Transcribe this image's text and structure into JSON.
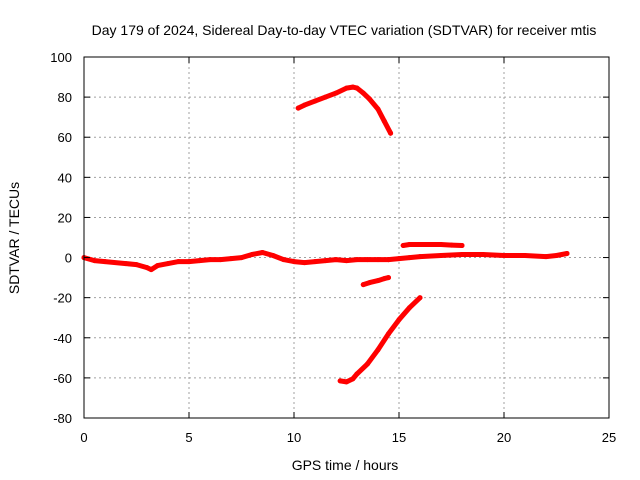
{
  "chart_data": {
    "type": "scatter",
    "title": "Day 179 of 2024, Sidereal Day-to-day VTEC variation (SDTVAR) for receiver mtis",
    "xlabel": "GPS time / hours",
    "ylabel": "SDTVAR / TECUs",
    "xlim": [
      0,
      25
    ],
    "ylim": [
      -80,
      100
    ],
    "xticks": [
      0,
      5,
      10,
      15,
      20,
      25
    ],
    "yticks": [
      -80,
      -60,
      -40,
      -20,
      0,
      20,
      40,
      60,
      80,
      100
    ],
    "grid": true,
    "color": "#ff0000",
    "series": [
      {
        "x": [
          0,
          0.5,
          1,
          2,
          2.5,
          3,
          3.2,
          3.5,
          4,
          4.5,
          5,
          5.5,
          6,
          6.5,
          7,
          7.5,
          8,
          8.5,
          9,
          9.5,
          10,
          10.5,
          11,
          11.5,
          12,
          12.5,
          13,
          13.5,
          14,
          14.5
        ],
        "y": [
          0,
          -1.5,
          -2,
          -3,
          -3.5,
          -5,
          -6,
          -4,
          -3,
          -2,
          -2,
          -1.5,
          -1,
          -1,
          -0.5,
          0,
          1.5,
          2.5,
          1,
          -1,
          -2,
          -2.5,
          -2,
          -1.5,
          -1,
          -1.5,
          -1,
          -1,
          -1,
          -1
        ]
      },
      {
        "x": [
          14.5,
          15,
          15.5,
          16,
          17,
          18,
          19,
          20,
          21,
          22,
          22.5,
          23
        ],
        "y": [
          -1,
          -0.5,
          0,
          0.5,
          1,
          1.5,
          1.5,
          1,
          1,
          0.5,
          1,
          2
        ]
      },
      {
        "x": [
          10.2,
          10.5,
          11,
          11.5,
          12,
          12.5,
          12.8,
          13,
          13.3,
          13.6,
          14,
          14.3,
          14.6
        ],
        "y": [
          74.5,
          76,
          78,
          80,
          82,
          84.5,
          85,
          84.5,
          82,
          79,
          74,
          68,
          62
        ]
      },
      {
        "x": [
          15.2,
          15.5,
          16,
          16.5,
          17,
          17.5,
          18
        ],
        "y": [
          6,
          6.5,
          6.5,
          6.5,
          6.5,
          6.2,
          6
        ]
      },
      {
        "x": [
          13.3,
          13.6,
          14,
          14.3,
          14.5
        ],
        "y": [
          -13.5,
          -12.5,
          -11.5,
          -10.5,
          -10
        ]
      },
      {
        "x": [
          12.2,
          12.5,
          12.8,
          13,
          13.5,
          14,
          14.5,
          15,
          15.5,
          16
        ],
        "y": [
          -61.5,
          -62,
          -60.5,
          -58,
          -53,
          -46,
          -38,
          -31,
          -25,
          -20
        ]
      }
    ]
  }
}
